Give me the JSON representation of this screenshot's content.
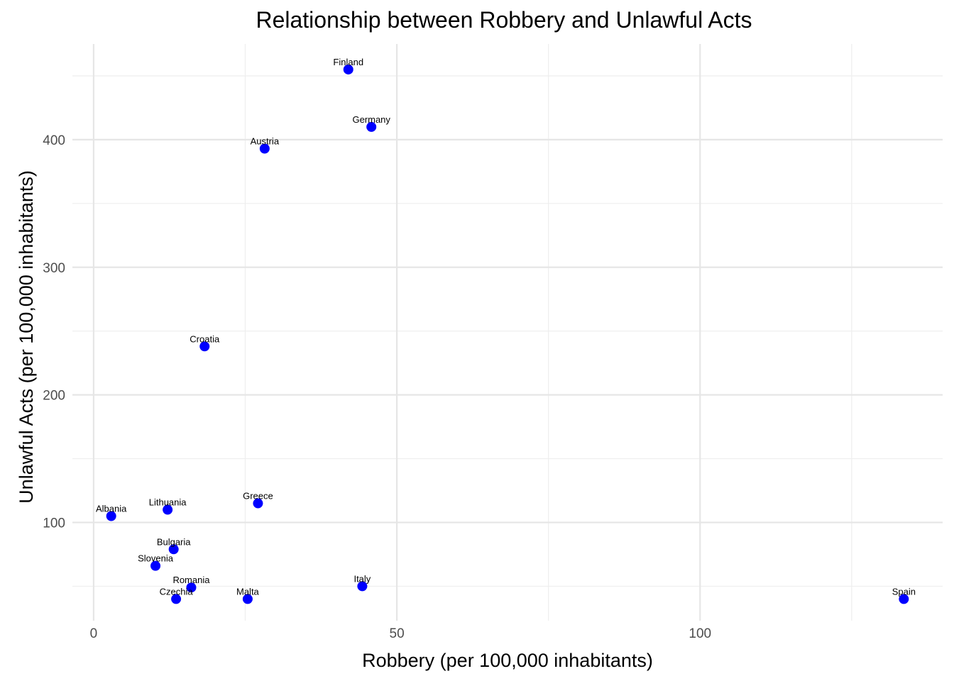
{
  "chart_data": {
    "type": "scatter",
    "title": "Relationship between Robbery and Unlawful Acts",
    "xlabel": "Robbery (per 100,000 inhabitants)",
    "ylabel": "Unlawful Acts (per 100,000 inhabitants)",
    "xlim": [
      -3.5,
      140
    ],
    "ylim": [
      23,
      475
    ],
    "x_ticks": [
      0,
      50,
      100
    ],
    "x_tick_labels": [
      "0",
      "50",
      "100"
    ],
    "x_minor_ticks": [
      25,
      75,
      125
    ],
    "y_ticks": [
      100,
      200,
      300,
      400
    ],
    "y_tick_labels": [
      "100",
      "200",
      "300",
      "400"
    ],
    "y_minor_ticks": [
      50,
      150,
      250,
      350,
      450
    ],
    "grid": true,
    "legend": "none",
    "point_color": "#0000ff",
    "points": [
      {
        "label": "Finland",
        "x": 42.0,
        "y": 455
      },
      {
        "label": "Germany",
        "x": 45.8,
        "y": 410
      },
      {
        "label": "Austria",
        "x": 28.2,
        "y": 393
      },
      {
        "label": "Croatia",
        "x": 18.3,
        "y": 238
      },
      {
        "label": "Greece",
        "x": 27.1,
        "y": 115
      },
      {
        "label": "Lithuania",
        "x": 12.2,
        "y": 110
      },
      {
        "label": "Albania",
        "x": 2.9,
        "y": 105
      },
      {
        "label": "Bulgaria",
        "x": 13.2,
        "y": 79
      },
      {
        "label": "Slovenia",
        "x": 10.2,
        "y": 66
      },
      {
        "label": "Romania",
        "x": 16.1,
        "y": 49
      },
      {
        "label": "Italy",
        "x": 44.3,
        "y": 50
      },
      {
        "label": "Czechia",
        "x": 13.6,
        "y": 40
      },
      {
        "label": "Malta",
        "x": 25.4,
        "y": 40
      },
      {
        "label": "Spain",
        "x": 133.6,
        "y": 40
      }
    ]
  }
}
